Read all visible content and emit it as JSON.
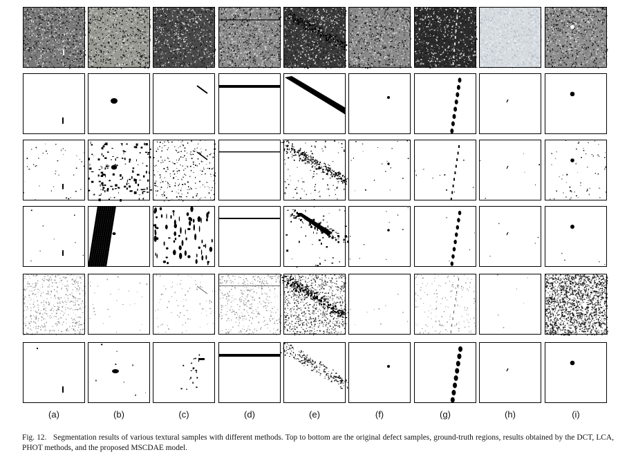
{
  "figure": {
    "columns": [
      "(a)",
      "(b)",
      "(c)",
      "(d)",
      "(e)",
      "(f)",
      "(g)",
      "(h)",
      "(i)"
    ],
    "rows": [
      {
        "key": "original",
        "description": "original defect samples"
      },
      {
        "key": "ground_truth",
        "description": "ground-truth regions"
      },
      {
        "key": "dct",
        "description": "DCT"
      },
      {
        "key": "lca",
        "description": "LCA"
      },
      {
        "key": "phot",
        "description": "PHOT"
      },
      {
        "key": "mscdae",
        "description": "proposed MSCDAE model"
      }
    ],
    "texture_colors": [
      "#7a7a7a",
      "#9a9a94",
      "#4a4a4a",
      "#8c8c8c",
      "#3a3a3a",
      "#8a8a8a",
      "#2c2c2c",
      "#d6dbe0",
      "#8e8e8e"
    ],
    "caption_fig": "Fig. 12.",
    "caption_text": "Segmentation results of various textural samples with different methods. Top to bottom are the original defect samples, ground-truth regions, results obtained by the DCT, LCA, PHOT methods, and the proposed MSCDAE model."
  }
}
